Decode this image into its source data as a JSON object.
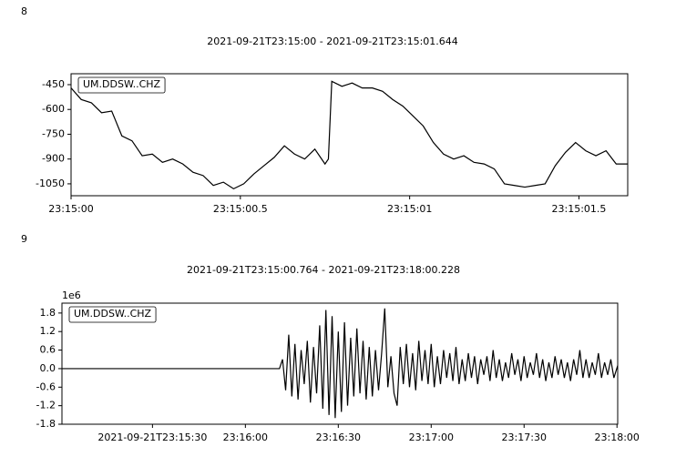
{
  "chart_data": [
    {
      "type": "line",
      "panel_label": "8",
      "title": "2021-09-21T23:15:00  -  2021-09-21T23:15:01.644",
      "legend": "upper left",
      "x": [
        0,
        0.03,
        0.06,
        0.09,
        0.12,
        0.15,
        0.18,
        0.21,
        0.24,
        0.27,
        0.3,
        0.33,
        0.36,
        0.39,
        0.42,
        0.45,
        0.48,
        0.51,
        0.54,
        0.57,
        0.6,
        0.63,
        0.66,
        0.69,
        0.72,
        0.75,
        0.76,
        0.77,
        0.8,
        0.83,
        0.86,
        0.89,
        0.92,
        0.95,
        0.98,
        1.01,
        1.04,
        1.07,
        1.1,
        1.13,
        1.16,
        1.19,
        1.22,
        1.25,
        1.28,
        1.31,
        1.34,
        1.37,
        1.4,
        1.43,
        1.46,
        1.49,
        1.52,
        1.55,
        1.58,
        1.61,
        1.644
      ],
      "series": [
        {
          "name": "UM.DDSW..CHZ",
          "color": "#000000",
          "values": [
            -470,
            -540,
            -560,
            -620,
            -610,
            -760,
            -790,
            -880,
            -870,
            -920,
            -900,
            -930,
            -980,
            -1000,
            -1060,
            -1040,
            -1080,
            -1050,
            -990,
            -940,
            -890,
            -820,
            -870,
            -900,
            -840,
            -930,
            -900,
            -430,
            -460,
            -440,
            -470,
            -470,
            -490,
            -540,
            -580,
            -640,
            -700,
            -800,
            -870,
            -900,
            -880,
            -920,
            -930,
            -960,
            -1050,
            -1060,
            -1070,
            -1060,
            -1050,
            -940,
            -860,
            -800,
            -850,
            -880,
            -850,
            -930,
            -930
          ]
        }
      ],
      "xlim": [
        0,
        1.644
      ],
      "xticks": [
        {
          "value": 0,
          "label": "23:15:00"
        },
        {
          "value": 0.5,
          "label": "23:15:00.5"
        },
        {
          "value": 1,
          "label": "23:15:01"
        },
        {
          "value": 1.5,
          "label": "23:15:01.5"
        }
      ],
      "ylim": [
        -1122,
        -384
      ],
      "yticks": [
        -450,
        -600,
        -750,
        -900,
        -1050
      ]
    },
    {
      "type": "line",
      "panel_label": "9",
      "title": "2021-09-21T23:15:00.764  -  2021-09-21T23:18:00.228",
      "y_offset_label": "1e6",
      "legend": "upper left",
      "x": [
        0.764,
        71,
        72,
        73,
        74,
        75,
        76,
        77,
        78,
        79,
        80,
        81,
        82,
        83,
        84,
        85,
        86,
        87,
        88,
        89,
        90,
        91,
        92,
        93,
        94,
        95,
        96,
        97,
        98,
        99,
        100,
        101,
        102,
        103,
        104,
        105,
        106,
        107,
        108,
        109,
        110,
        111,
        112,
        113,
        114,
        115,
        116,
        117,
        118,
        119,
        120,
        121,
        122,
        123,
        124,
        125,
        126,
        127,
        128,
        129,
        130,
        131,
        132,
        133,
        134,
        135,
        136,
        137,
        138,
        139,
        140,
        141,
        142,
        143,
        144,
        145,
        146,
        147,
        148,
        149,
        150,
        151,
        152,
        153,
        154,
        155,
        156,
        157,
        158,
        159,
        160,
        161,
        162,
        163,
        164,
        165,
        166,
        167,
        168,
        169,
        170,
        171,
        172,
        173,
        174,
        175,
        176,
        177,
        178,
        179,
        180.228
      ],
      "series": [
        {
          "name": "UM.DDSW..CHZ",
          "color": "#000000",
          "values": [
            0,
            0,
            0.3,
            -0.7,
            1.1,
            -0.9,
            0.8,
            -1.0,
            0.6,
            -0.5,
            0.9,
            -1.1,
            0.7,
            -0.8,
            1.4,
            -1.3,
            1.9,
            -1.5,
            1.7,
            -1.6,
            1.2,
            -1.4,
            1.5,
            -1.2,
            1.0,
            -0.9,
            1.3,
            -0.8,
            0.9,
            -1.0,
            0.7,
            -0.9,
            0.6,
            -0.7,
            0.5,
            1.95,
            -0.6,
            0.4,
            -0.8,
            -1.2,
            0.7,
            -0.5,
            0.8,
            -0.6,
            0.5,
            -0.7,
            0.9,
            -0.4,
            0.6,
            -0.5,
            0.8,
            -0.6,
            0.4,
            -0.5,
            0.6,
            -0.3,
            0.5,
            -0.4,
            0.7,
            -0.5,
            0.3,
            -0.4,
            0.5,
            -0.3,
            0.4,
            -0.5,
            0.3,
            -0.2,
            0.4,
            -0.4,
            0.6,
            -0.3,
            0.3,
            -0.4,
            0.2,
            -0.3,
            0.5,
            -0.2,
            0.3,
            -0.4,
            0.4,
            -0.3,
            0.2,
            -0.2,
            0.5,
            -0.3,
            0.3,
            -0.4,
            0.2,
            -0.3,
            0.4,
            -0.2,
            0.3,
            -0.3,
            0.2,
            -0.4,
            0.3,
            -0.2,
            0.6,
            -0.3,
            0.3,
            -0.3,
            0.2,
            -0.2,
            0.5,
            -0.3,
            0.2,
            -0.2,
            0.3,
            -0.3,
            0.1
          ]
        }
      ],
      "xlim": [
        0.764,
        180.228
      ],
      "xticks": [
        {
          "value": 30,
          "label": "2021-09-21T23:15:30"
        },
        {
          "value": 60,
          "label": "23:16:00"
        },
        {
          "value": 90,
          "label": "23:16:30"
        },
        {
          "value": 120,
          "label": "23:17:00"
        },
        {
          "value": 150,
          "label": "23:17:30"
        },
        {
          "value": 180,
          "label": "23:18:00"
        }
      ],
      "ylim": [
        -1.8,
        2.12
      ],
      "yticks": [
        1.8,
        1.2,
        0.6,
        {
          "value": 0,
          "label": "0.0"
        },
        -0.6,
        -1.2,
        -1.8
      ]
    }
  ]
}
